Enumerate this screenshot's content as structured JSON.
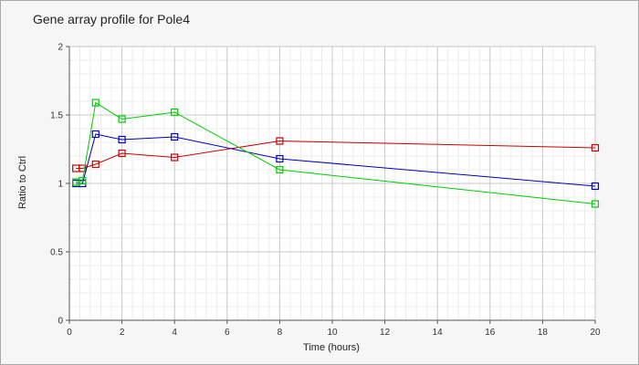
{
  "chart_data": {
    "type": "line",
    "title": "Gene array profile for Pole4",
    "xlabel": "Time (hours)",
    "ylabel": "Ratio to Ctrl",
    "xlim": [
      0,
      20
    ],
    "ylim": [
      0,
      2
    ],
    "xticks": [
      0,
      2,
      4,
      6,
      8,
      10,
      12,
      14,
      16,
      18,
      20
    ],
    "yticks": [
      0,
      0.5,
      1,
      1.5,
      2
    ],
    "ytick_labels": [
      "0",
      "0.5",
      "1",
      "1.5",
      "2"
    ],
    "grid": true,
    "minor_grid": true,
    "legend": "none",
    "marker": "square",
    "series": [
      {
        "color": "#cc0000",
        "x": [
          0.25,
          0.5,
          1,
          2,
          4,
          8,
          20
        ],
        "y": [
          1.11,
          1.11,
          1.14,
          1.22,
          1.19,
          1.31,
          1.26
        ]
      },
      {
        "color": "#0000bb",
        "x": [
          0.25,
          0.5,
          1,
          2,
          4,
          8,
          20
        ],
        "y": [
          1.0,
          1.0,
          1.36,
          1.32,
          1.34,
          1.18,
          0.98
        ]
      },
      {
        "color": "#00cc00",
        "x": [
          0.25,
          0.5,
          1,
          2,
          4,
          8,
          20
        ],
        "y": [
          1.01,
          1.02,
          1.59,
          1.47,
          1.52,
          1.1,
          0.85
        ]
      }
    ]
  }
}
